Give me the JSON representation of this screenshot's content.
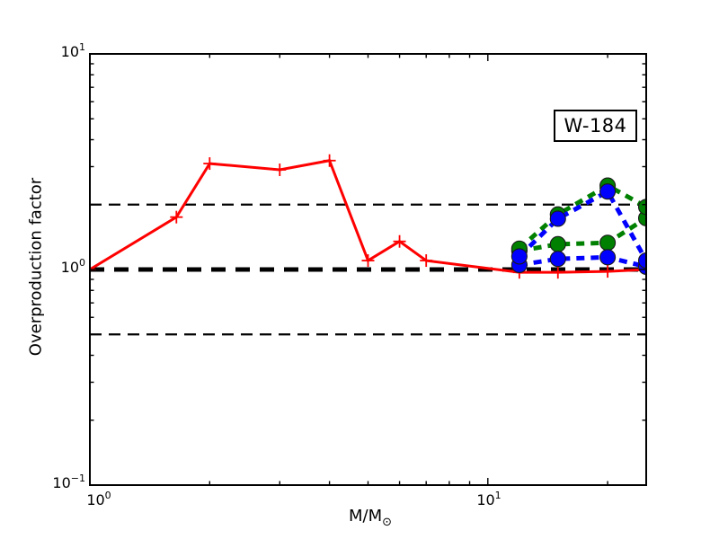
{
  "figure": {
    "background": "#ffffff",
    "axes": {
      "x": {
        "title_main": "M/M",
        "title_sub": "⊙",
        "scale": "log",
        "major_ticks": [
          {
            "value": 1,
            "base": "10",
            "exp": "0"
          },
          {
            "value": 10,
            "base": "10",
            "exp": "1"
          }
        ],
        "minor_ticks": [
          2,
          3,
          4,
          5,
          6,
          7,
          8,
          9,
          20
        ]
      },
      "y": {
        "title": "Overproduction factor",
        "scale": "log",
        "major_ticks": [
          {
            "value": 10,
            "base": "10",
            "exp": "1"
          },
          {
            "value": 1,
            "base": "10",
            "exp": "0"
          },
          {
            "value": 0.1,
            "base": "10",
            "exp": "−1"
          }
        ],
        "minor_ticks": [
          0.2,
          0.3,
          0.4,
          0.5,
          0.6,
          0.7,
          0.8,
          0.9,
          2,
          3,
          4,
          5,
          6,
          7,
          8,
          9
        ]
      }
    }
  },
  "chart_data": {
    "type": "line",
    "title": "",
    "annotation": "W-184",
    "xlabel": "M/M⊙",
    "ylabel": "Overproduction factor",
    "x_scale": "log",
    "y_scale": "log",
    "xlim": [
      1,
      25
    ],
    "ylim": [
      0.1,
      10
    ],
    "grid": false,
    "legend": "none",
    "frame_color": "#000000",
    "reference_lines": [
      {
        "y": 2.0,
        "color": "#000000",
        "style": "dashed-thin"
      },
      {
        "y": 0.5,
        "color": "#000000",
        "style": "dashed-thin"
      },
      {
        "y": 1.0,
        "color": "#000000",
        "style": "dashed-thick"
      }
    ],
    "series": [
      {
        "name": "red-solid-plus",
        "color": "#ff0000",
        "line_style": "solid",
        "marker": "plus",
        "x": [
          1.0,
          1.65,
          2.0,
          3.0,
          4.0,
          5.0,
          6.0,
          7.0,
          12,
          15,
          20,
          25
        ],
        "y": [
          1.0,
          1.75,
          3.1,
          2.9,
          3.2,
          1.1,
          1.35,
          1.1,
          0.97,
          0.97,
          0.98,
          1.0
        ]
      },
      {
        "name": "green-dashed-lower",
        "color": "#008000",
        "line_style": "dashed",
        "marker": "circle",
        "x": [
          12,
          15,
          20,
          25
        ],
        "y": [
          1.22,
          1.31,
          1.33,
          1.73
        ]
      },
      {
        "name": "blue-dashed-lower",
        "color": "#0000ff",
        "line_style": "dashed",
        "marker": "circle",
        "x": [
          12,
          15,
          20,
          25
        ],
        "y": [
          1.05,
          1.12,
          1.14,
          1.03
        ]
      },
      {
        "name": "green-dashed-upper",
        "color": "#008000",
        "line_style": "dashed",
        "marker": "circle",
        "x": [
          12,
          15,
          20,
          25
        ],
        "y": [
          1.25,
          1.8,
          2.45,
          1.95
        ]
      },
      {
        "name": "blue-dashed-upper",
        "color": "#0000ff",
        "line_style": "dashed",
        "marker": "circle",
        "x": [
          12,
          15,
          20,
          25
        ],
        "y": [
          1.15,
          1.72,
          2.3,
          1.1
        ]
      }
    ]
  }
}
